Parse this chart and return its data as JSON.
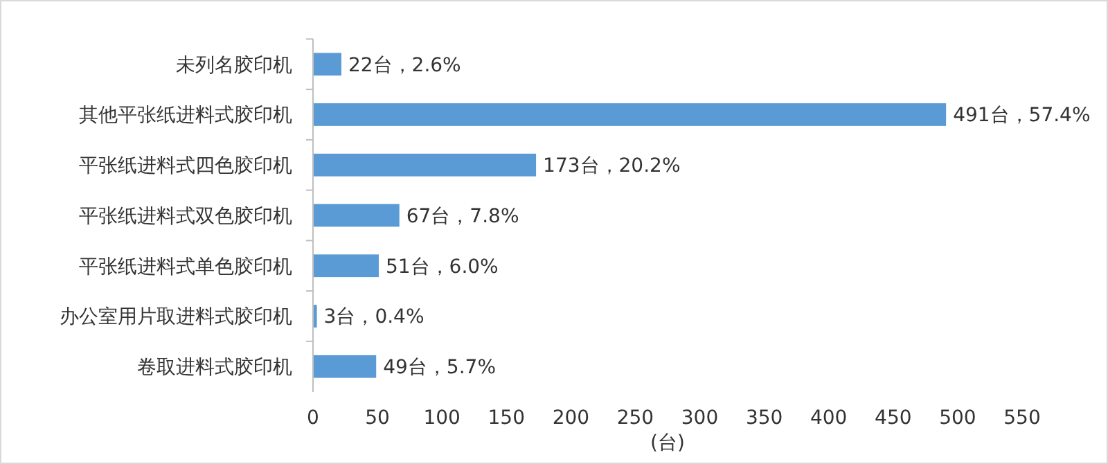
{
  "chart_data": {
    "type": "bar",
    "orientation": "horizontal",
    "xlabel": "(台)",
    "categories": [
      "未列名胶印机",
      "其他平张纸进料式胶印机",
      "平张纸进料式四色胶印机",
      "平张纸进料式双色胶印机",
      "平张纸进料式单色胶印机",
      "办公室用片取进料式胶印机",
      "卷取进料式胶印机"
    ],
    "values": [
      22,
      491,
      173,
      67,
      51,
      3,
      49
    ],
    "value_labels": [
      "22台，2.6%",
      "491台，57.4%",
      "173台，20.2%",
      "67台，7.8%",
      "51台，6.0%",
      "3台，0.4%",
      "49台，5.7%"
    ],
    "color": "#5b9bd5",
    "xlim": [
      0,
      550
    ],
    "xticks": [
      0,
      50,
      100,
      150,
      200,
      250,
      300,
      350,
      400,
      450,
      500,
      550
    ],
    "grid": false
  }
}
